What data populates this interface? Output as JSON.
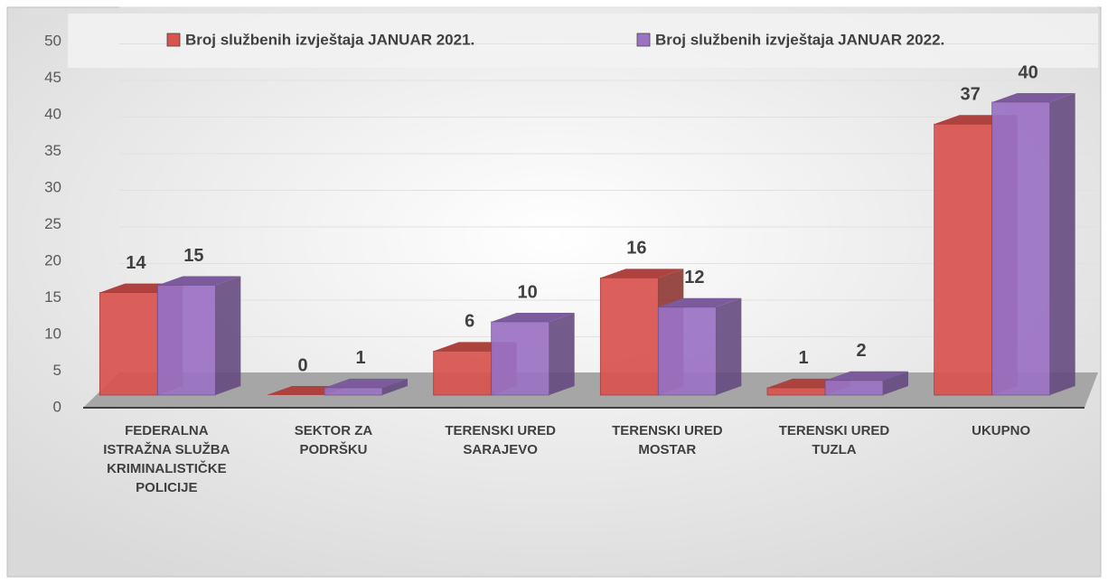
{
  "chart_data": {
    "type": "bar3d",
    "categories": [
      "FEDERALNA ISTRAŽNA SLUŽBA KRIMINALISTIČKE POLICIJE",
      "SEKTOR ZA PODRŠKU",
      "TERENSKI URED SARAJEVO",
      "TERENSKI URED MOSTAR",
      "TERENSKI URED TUZLA",
      "UKUPNO"
    ],
    "series": [
      {
        "name": "Broj službenih izvještaja JANUAR 2021.",
        "color": "#d9534f",
        "values": [
          14,
          0,
          6,
          16,
          1,
          37
        ]
      },
      {
        "name": "Broj službenih izvještaja JANUAR 2022.",
        "color": "#9b72c4",
        "values": [
          15,
          1,
          10,
          12,
          2,
          40
        ]
      }
    ],
    "ylim": [
      0,
      50
    ],
    "yticks": [
      0,
      5,
      10,
      15,
      20,
      25,
      30,
      35,
      40,
      45,
      50
    ],
    "grid": true,
    "legend": "top"
  }
}
